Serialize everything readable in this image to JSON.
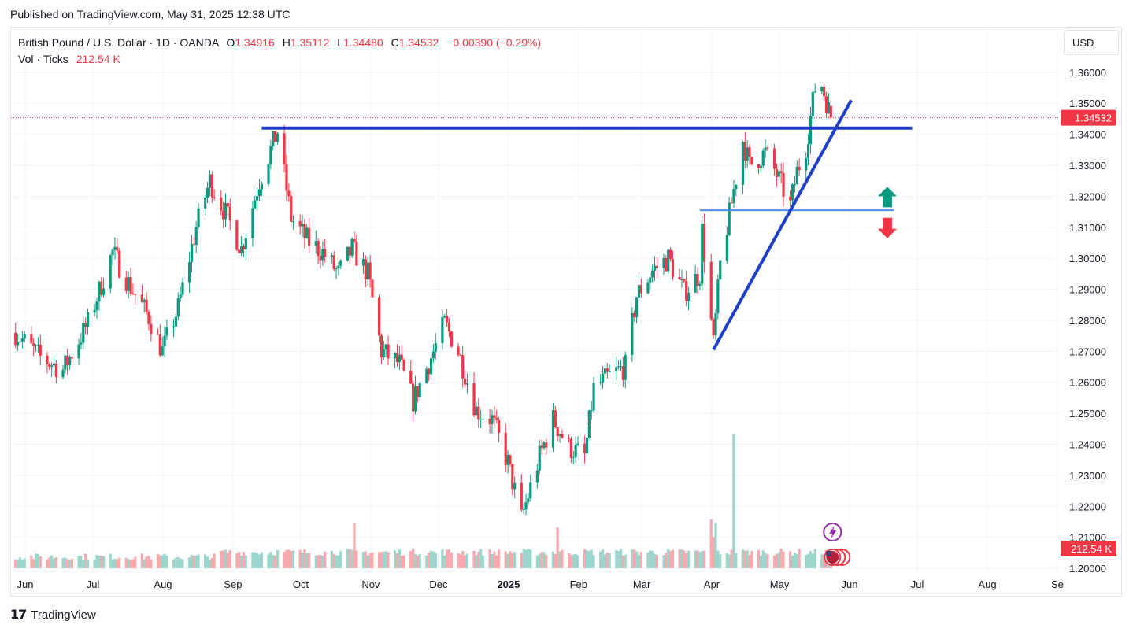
{
  "published": "Published on TradingView.com, May 31, 2025 12:38 UTC",
  "legend": {
    "symbol": "British Pound / U.S. Dollar · 1D · OANDA",
    "open_label": "O",
    "open": "1.34916",
    "high_label": "H",
    "high": "1.35112",
    "low_label": "L",
    "low": "1.34480",
    "close_label": "C",
    "close": "1.34532",
    "change": "−0.00390 (−0.29%)",
    "volume_label": "Vol · Ticks",
    "volume": "212.54 K"
  },
  "currency": "USD",
  "branding": "TradingView",
  "colors": {
    "up": "#089981",
    "down": "#f23645",
    "vol_up": "#9bd5cb",
    "vol_down": "#f7a9ae",
    "trendline": "#1e40c8",
    "support": "#4a90e2"
  },
  "chart_data": {
    "type": "candlestick",
    "symbol": "GBPUSD",
    "interval": "1D",
    "y_axis": {
      "ticks": [
        "1.36000",
        "1.35000",
        "1.34000",
        "1.33000",
        "1.32000",
        "1.31000",
        "1.30000",
        "1.29000",
        "1.28000",
        "1.27000",
        "1.26000",
        "1.25000",
        "1.24000",
        "1.23000",
        "1.22000",
        "1.21000",
        "1.20000"
      ],
      "range": [
        1.1995,
        1.3625
      ]
    },
    "x_axis": {
      "ticks": [
        "Jun",
        "Jul",
        "Aug",
        "Sep",
        "Oct",
        "Nov",
        "Dec",
        "2025",
        "Feb",
        "Mar",
        "Apr",
        "May",
        "Jun",
        "Jul",
        "Aug",
        "Se"
      ]
    },
    "last_price": "1.34532",
    "last_volume": "212.54 K",
    "close_path": [
      [
        "2024-06-03",
        1.276
      ],
      [
        "2024-06-14",
        1.268
      ],
      [
        "2024-06-24",
        1.264
      ],
      [
        "2024-07-05",
        1.279
      ],
      [
        "2024-07-16",
        1.302
      ],
      [
        "2024-07-23",
        1.292
      ],
      [
        "2024-08-01",
        1.281
      ],
      [
        "2024-08-07",
        1.27
      ],
      [
        "2024-08-14",
        1.284
      ],
      [
        "2024-08-22",
        1.31
      ],
      [
        "2024-08-28",
        1.325
      ],
      [
        "2024-09-05",
        1.313
      ],
      [
        "2024-09-11",
        1.303
      ],
      [
        "2024-09-19",
        1.325
      ],
      [
        "2024-09-27",
        1.341
      ],
      [
        "2024-10-03",
        1.313
      ],
      [
        "2024-10-10",
        1.306
      ],
      [
        "2024-10-17",
        1.302
      ],
      [
        "2024-10-24",
        1.295
      ],
      [
        "2024-10-30",
        1.303
      ],
      [
        "2024-11-06",
        1.295
      ],
      [
        "2024-11-12",
        1.27
      ],
      [
        "2024-11-20",
        1.266
      ],
      [
        "2024-11-26",
        1.254
      ],
      [
        "2024-12-04",
        1.268
      ],
      [
        "2024-12-10",
        1.279
      ],
      [
        "2024-12-16",
        1.27
      ],
      [
        "2024-12-24",
        1.251
      ],
      [
        "2024-12-31",
        1.248
      ],
      [
        "2025-01-07",
        1.234
      ],
      [
        "2025-01-13",
        1.216
      ],
      [
        "2025-01-21",
        1.236
      ],
      [
        "2025-01-27",
        1.248
      ],
      [
        "2025-02-03",
        1.239
      ],
      [
        "2025-02-10",
        1.236
      ],
      [
        "2025-02-14",
        1.258
      ],
      [
        "2025-02-21",
        1.262
      ],
      [
        "2025-02-28",
        1.265
      ],
      [
        "2025-03-05",
        1.288
      ],
      [
        "2025-03-12",
        1.296
      ],
      [
        "2025-03-19",
        1.3
      ],
      [
        "2025-03-26",
        1.289
      ],
      [
        "2025-04-02",
        1.295
      ],
      [
        "2025-04-03",
        1.309
      ],
      [
        "2025-04-08",
        1.272
      ],
      [
        "2025-04-11",
        1.298
      ],
      [
        "2025-04-17",
        1.322
      ],
      [
        "2025-04-21",
        1.338
      ],
      [
        "2025-04-24",
        1.33
      ],
      [
        "2025-05-01",
        1.334
      ],
      [
        "2025-05-06",
        1.327
      ],
      [
        "2025-05-12",
        1.317
      ],
      [
        "2025-05-15",
        1.328
      ],
      [
        "2025-05-19",
        1.336
      ],
      [
        "2025-05-23",
        1.355
      ],
      [
        "2025-05-26",
        1.356
      ],
      [
        "2025-05-30",
        1.34532
      ]
    ],
    "annotations": [
      {
        "type": "horizontal_line",
        "price": 1.342,
        "from": "2024-09-20",
        "to": "2025-07-05"
      },
      {
        "type": "horizontal_line",
        "price": 1.3155,
        "from": "2025-04-02",
        "to": "2025-06-27"
      },
      {
        "type": "trend_line",
        "from": [
          "2025-04-08",
          1.2705
        ],
        "to": [
          "2025-06-08",
          1.351
        ]
      },
      {
        "type": "arrow_up",
        "at": [
          "2025-06-24",
          1.319
        ]
      },
      {
        "type": "arrow_down",
        "at": [
          "2025-06-24",
          1.3105
        ]
      }
    ],
    "volume_notable": [
      [
        "2024-10-31",
        "spike"
      ],
      [
        "2025-04-07",
        "spike"
      ],
      [
        "2025-04-17",
        "highest"
      ]
    ]
  }
}
